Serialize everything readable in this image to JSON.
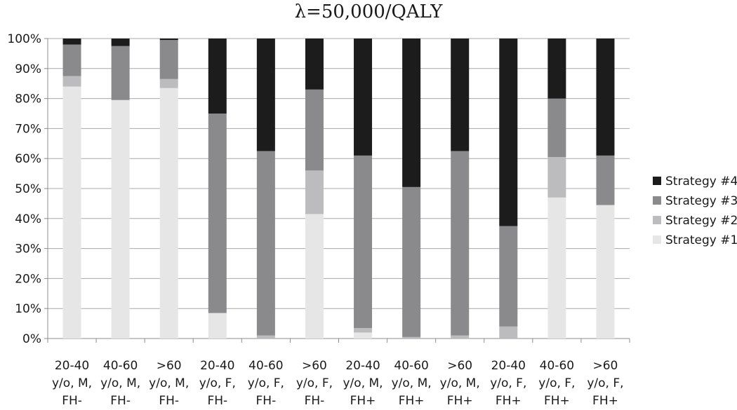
{
  "chart_data": {
    "type": "bar",
    "stacked": true,
    "title": "λ=50,000/QALY",
    "categories": [
      [
        "20-40",
        "y/o, M,",
        "FH-"
      ],
      [
        "40-60",
        "y/o, M,",
        "FH-"
      ],
      [
        ">60",
        "y/o, M,",
        "FH-"
      ],
      [
        "20-40",
        "y/o, F,",
        "FH-"
      ],
      [
        "40-60",
        "y/o, F,",
        "FH-"
      ],
      [
        ">60",
        "y/o, F,",
        "FH-"
      ],
      [
        "20-40",
        "y/o, M,",
        "FH+"
      ],
      [
        "40-60",
        "y/o, M,",
        "FH+"
      ],
      [
        ">60",
        "y/o, M,",
        "FH+"
      ],
      [
        "20-40",
        "y/o, F,",
        "FH+"
      ],
      [
        "40-60",
        "y/o, F,",
        "FH+"
      ],
      [
        ">60",
        "y/o, F,",
        "FH+"
      ]
    ],
    "series": [
      {
        "name": "Strategy #1",
        "color": "#e6e6e7",
        "values": [
          84,
          79.5,
          83.5,
          8.5,
          0,
          41.5,
          2,
          0,
          0,
          0,
          47,
          44.5
        ]
      },
      {
        "name": "Strategy #2",
        "color": "#bcbcbe",
        "values": [
          3.5,
          0,
          3,
          0,
          1,
          14.5,
          1.5,
          0.5,
          1,
          4,
          13.5,
          0
        ]
      },
      {
        "name": "Strategy #3",
        "color": "#8a8a8c",
        "values": [
          10.5,
          18,
          13,
          66.5,
          61.5,
          27,
          57.5,
          50,
          61.5,
          33.5,
          19.5,
          16.5
        ]
      },
      {
        "name": "Strategy #4",
        "color": "#1c1c1c",
        "values": [
          2,
          2.5,
          0.5,
          25,
          37.5,
          17,
          39,
          49.5,
          37.5,
          62.5,
          20,
          39
        ]
      }
    ],
    "ylim": [
      0,
      100
    ],
    "yticks": [
      "0%",
      "10%",
      "20%",
      "30%",
      "40%",
      "50%",
      "60%",
      "70%",
      "80%",
      "90%",
      "100%"
    ],
    "grid": true,
    "legend_position": "right",
    "legend_order": [
      "Strategy #4",
      "Strategy #3",
      "Strategy #2",
      "Strategy #1"
    ]
  }
}
